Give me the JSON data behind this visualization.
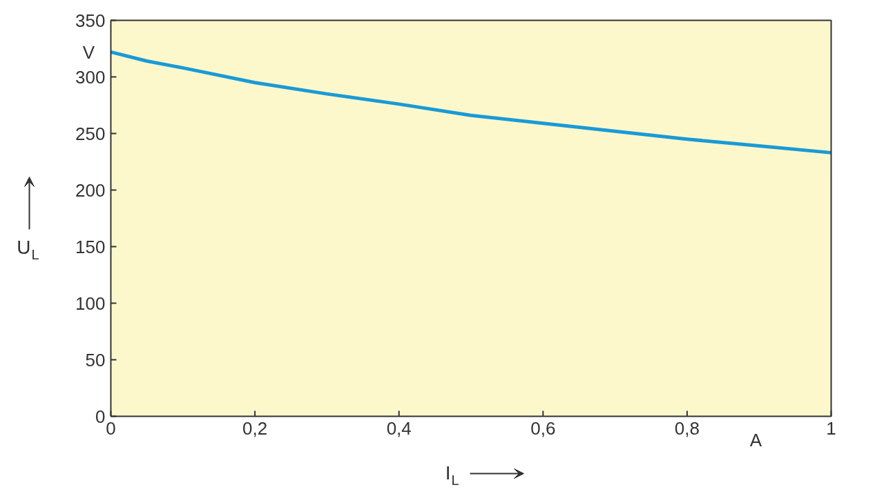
{
  "chart_data": {
    "type": "line",
    "xlabel": "I$_{L}$",
    "ylabel": "U$_{L}$",
    "annotations": [
      "V",
      "A"
    ],
    "x": [
      0,
      0.05,
      0.1,
      0.2,
      0.3,
      0.4,
      0.5,
      0.6,
      0.7,
      0.8,
      0.9,
      1
    ],
    "series": [
      {
        "color": "#1a9ad6",
        "values": [
          322,
          314,
          308,
          295,
          285,
          276,
          266,
          259,
          252,
          245,
          239,
          233
        ]
      }
    ],
    "xlim": [
      0,
      1
    ],
    "ylim": [
      0,
      350
    ],
    "xticks": [
      0,
      {
        "value": 0.2,
        "label": "0,2"
      },
      {
        "value": 0.4,
        "label": "0,4"
      },
      {
        "value": 0.6,
        "label": "0,6"
      },
      {
        "value": 0.8,
        "label": "0,8"
      },
      1
    ],
    "yticks": [
      0,
      50,
      100,
      150,
      200,
      250,
      300,
      350
    ],
    "grid": false,
    "marker": "none",
    "line_style": "solid"
  }
}
